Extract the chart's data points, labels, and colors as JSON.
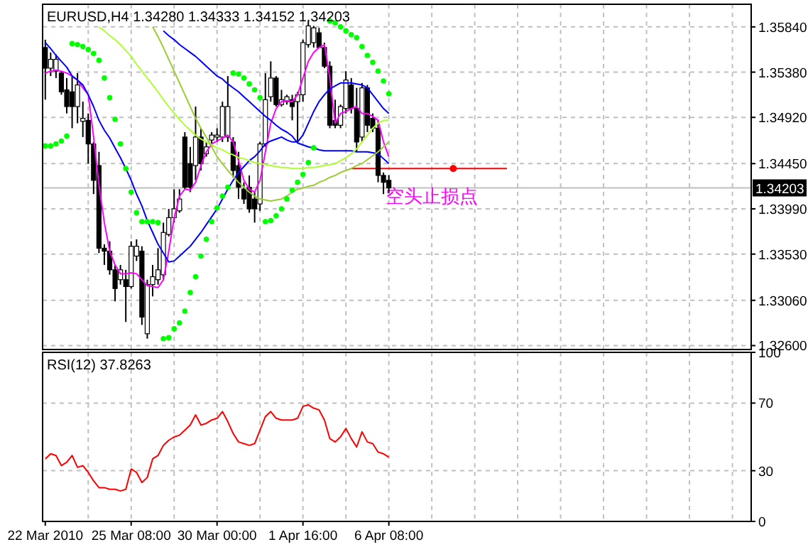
{
  "chart_data": [
    {
      "type": "candlestick",
      "title": "EURUSD,H4  1.34280 1.34333 1.34152 1.34203",
      "color": "#000000",
      "categories": [
        null,
        null,
        null,
        null,
        null,
        null,
        null,
        null,
        null,
        null,
        null,
        null,
        null,
        null,
        null,
        null,
        null,
        null,
        null,
        null,
        null,
        null,
        null,
        null,
        null,
        null,
        null,
        null,
        null,
        null,
        null,
        null,
        null,
        null,
        null,
        null,
        null,
        null,
        null,
        null,
        null,
        null,
        null,
        null,
        null,
        null,
        null,
        null,
        null,
        null,
        null,
        null,
        null,
        null,
        null,
        null,
        null,
        null,
        null,
        null,
        null,
        null,
        null,
        null,
        null,
        null,
        null,
        null,
        null,
        null,
        null,
        null,
        null,
        null,
        null,
        null,
        null,
        null,
        null,
        null,
        null,
        null,
        null,
        null,
        null,
        null,
        null,
        null,
        null,
        null,
        null,
        null,
        null,
        null,
        null,
        null,
        null,
        null,
        null,
        null,
        null,
        null,
        null,
        null,
        null,
        null,
        null,
        null,
        null,
        null,
        null,
        null,
        null,
        null,
        null,
        null,
        null,
        null,
        null,
        null,
        null,
        null,
        null,
        null,
        null,
        null,
        null,
        null,
        null,
        null,
        null,
        null
      ],
      "ohlc": [
        [
          1.3563,
          1.3571,
          1.351,
          1.3542
        ],
        [
          1.3542,
          1.3558,
          1.3534,
          1.3551
        ],
        [
          1.3539,
          1.3556,
          1.3532,
          1.3551
        ],
        [
          1.3537,
          1.3539,
          1.3515,
          1.3518
        ],
        [
          1.352,
          1.3532,
          1.3496,
          1.3503
        ],
        [
          1.3518,
          1.3534,
          1.3481,
          1.3503
        ],
        [
          1.3503,
          1.3537,
          1.3486,
          1.3525
        ],
        [
          1.3488,
          1.3508,
          1.3472,
          1.3491
        ],
        [
          1.3489,
          1.3496,
          1.3445,
          1.3465
        ],
        [
          1.3465,
          1.3467,
          1.3414,
          1.3428
        ],
        [
          1.3443,
          1.3457,
          1.3354,
          1.3359
        ],
        [
          1.3359,
          1.3363,
          1.3342,
          1.3356
        ],
        [
          1.3356,
          1.3366,
          1.3332,
          1.3337
        ],
        [
          1.3337,
          1.3342,
          1.3305,
          1.3318
        ],
        [
          1.3327,
          1.3342,
          1.3322,
          1.3337
        ],
        [
          1.3327,
          1.3337,
          1.3284,
          1.332
        ],
        [
          1.332,
          1.3366,
          1.3318,
          1.3361
        ],
        [
          1.3351,
          1.3368,
          1.3346,
          1.3361
        ],
        [
          1.3356,
          1.3361,
          1.3281,
          1.3289
        ],
        [
          1.3272,
          1.3327,
          1.3267,
          1.3322
        ],
        [
          1.3322,
          1.3342,
          1.331,
          1.333
        ],
        [
          1.3327,
          1.3359,
          1.3322,
          1.3337
        ],
        [
          1.3332,
          1.3385,
          1.3327,
          1.3375
        ],
        [
          1.3373,
          1.3399,
          1.3371,
          1.339
        ],
        [
          1.339,
          1.3419,
          1.3385,
          1.3399
        ],
        [
          1.3397,
          1.3419,
          1.3395,
          1.3409
        ],
        [
          1.3472,
          1.3477,
          1.3419,
          1.3421
        ],
        [
          1.3445,
          1.3462,
          1.3416,
          1.3421
        ],
        [
          1.3443,
          1.3503,
          1.3428,
          1.3472
        ],
        [
          1.3472,
          1.3481,
          1.3438,
          1.3445
        ],
        [
          1.3455,
          1.3467,
          1.3452,
          1.3462
        ],
        [
          1.3469,
          1.3477,
          1.3462,
          1.3474
        ],
        [
          1.3472,
          1.3481,
          1.3467,
          1.3474
        ],
        [
          1.3472,
          1.3508,
          1.3467,
          1.3503
        ],
        [
          1.3472,
          1.3534,
          1.3467,
          1.3503
        ],
        [
          1.3467,
          1.3472,
          1.3431,
          1.3438
        ],
        [
          1.3443,
          1.3457,
          1.3409,
          1.3421
        ],
        [
          1.3419,
          1.3426,
          1.3404,
          1.3409
        ],
        [
          1.3421,
          1.3433,
          1.3395,
          1.3399
        ],
        [
          1.3409,
          1.3416,
          1.3385,
          1.3399
        ],
        [
          1.3404,
          1.3467,
          1.3397,
          1.3465
        ],
        [
          1.3465,
          1.3537,
          1.3462,
          1.351
        ],
        [
          1.3513,
          1.3549,
          1.3508,
          1.3532
        ],
        [
          1.3532,
          1.3534,
          1.3503,
          1.3505
        ],
        [
          1.3505,
          1.352,
          1.3503,
          1.351
        ],
        [
          1.3508,
          1.3515,
          1.3505,
          1.3513
        ],
        [
          1.351,
          1.3515,
          1.3489,
          1.3503
        ],
        [
          1.3508,
          1.3518,
          1.3467,
          1.3515
        ],
        [
          1.3515,
          1.3571,
          1.3508,
          1.3568
        ],
        [
          1.3566,
          1.359,
          1.3563,
          1.3585
        ],
        [
          1.3568,
          1.3585,
          1.3563,
          1.3583
        ],
        [
          1.3578,
          1.3583,
          1.3563,
          1.3563
        ],
        [
          1.3563,
          1.3568,
          1.3542,
          1.3544
        ],
        [
          1.3544,
          1.3549,
          1.3481,
          1.3484
        ],
        [
          1.3489,
          1.351,
          1.3481,
          1.3484
        ],
        [
          1.3484,
          1.3505,
          1.3481,
          1.3503
        ],
        [
          1.3501,
          1.3539,
          1.3496,
          1.353
        ],
        [
          1.3525,
          1.3532,
          1.3496,
          1.3501
        ],
        [
          1.3501,
          1.3522,
          1.3457,
          1.3467
        ],
        [
          1.3472,
          1.3527,
          1.3467,
          1.3522
        ],
        [
          1.3522,
          1.3525,
          1.3477,
          1.3484
        ],
        [
          1.3491,
          1.3496,
          1.3477,
          1.3481
        ],
        [
          1.3481,
          1.3489,
          1.3426,
          1.3433
        ],
        [
          1.3433,
          1.3436,
          1.3414,
          1.3426
        ],
        [
          1.3428,
          1.34333,
          1.34152,
          1.34203
        ],
        null,
        null,
        null,
        null,
        null,
        null,
        null,
        null,
        null,
        null,
        null,
        null,
        null,
        null,
        null,
        null,
        null,
        null,
        null,
        null,
        null,
        null,
        null,
        null,
        null,
        null,
        null,
        null,
        null,
        null,
        null,
        null,
        null,
        null,
        null,
        null,
        null,
        null,
        null,
        null,
        null,
        null,
        null,
        null,
        null,
        null,
        null,
        null,
        null,
        null,
        null,
        null,
        null,
        null,
        null,
        null,
        null,
        null,
        null,
        null,
        null,
        null,
        null,
        null,
        null,
        null,
        null
      ],
      "series": [
        {
          "type": "line",
          "color": "#ff00ff",
          "values": [
            1.3537,
            1.3539,
            1.354,
            1.3539,
            1.3537,
            1.3534,
            1.353,
            1.3522,
            1.3515,
            1.3472,
            1.3423,
            1.3385,
            1.3356,
            1.3342,
            1.3333,
            1.3333,
            1.3334,
            1.3333,
            1.3327,
            1.3321,
            1.332,
            1.3319,
            1.3327,
            1.3356,
            1.339,
            1.3412,
            1.3419,
            1.3418,
            1.3426,
            1.3443,
            1.3457,
            1.3465,
            1.3468,
            1.3471,
            1.3474,
            1.3467,
            1.3448,
            1.3428,
            1.3419,
            1.3416,
            1.3428,
            1.3457,
            1.3486,
            1.3501,
            1.3508,
            1.3509,
            1.3508,
            1.3515,
            1.3532,
            1.3549,
            1.3558,
            1.3563,
            1.3566,
            1.3532,
            1.3486,
            1.3496,
            1.3498,
            1.3501,
            1.3503,
            1.3496,
            1.3496,
            1.3493,
            1.3489,
            1.3467,
            1.3452,
            null,
            null,
            null,
            null,
            null,
            null,
            null,
            null,
            null,
            null,
            null,
            null,
            null,
            null,
            null,
            null,
            null,
            null,
            null,
            null,
            null,
            null,
            null,
            null,
            null,
            null,
            null,
            null,
            null,
            null,
            null,
            null,
            null,
            null,
            null,
            null,
            null,
            null,
            null,
            null,
            null,
            null,
            null,
            null,
            null,
            null,
            null,
            null,
            null,
            null,
            null,
            null,
            null,
            null,
            null,
            null,
            null,
            null,
            null,
            null,
            null,
            null,
            null,
            null,
            null,
            null,
            null
          ]
        },
        {
          "type": "line",
          "color": "#0000ff",
          "values": [
            1.3568,
            1.3562,
            1.3555,
            1.3549,
            1.3543,
            1.3534,
            1.353,
            1.3525,
            1.3515,
            1.3503,
            1.3489,
            1.3479,
            1.3471,
            1.3461,
            1.3451,
            1.344,
            1.3428,
            1.3414,
            1.3402,
            1.3387,
            1.3375,
            1.3363,
            1.3354,
            1.3345,
            1.3346,
            1.3351,
            1.3356,
            1.3361,
            1.3368,
            1.3375,
            1.3383,
            1.3391,
            1.3399,
            1.3409,
            1.3419,
            1.3428,
            1.3436,
            1.3442,
            1.3448,
            1.3452,
            1.3458,
            1.3465,
            1.3468,
            1.347,
            1.3472,
            1.3469,
            1.3467,
            1.3467,
            1.3474,
            1.3486,
            1.3498,
            1.3508,
            1.3515,
            1.3521,
            1.3524,
            1.3527,
            1.3527,
            1.3527,
            1.3526,
            1.3525,
            1.3522,
            1.3515,
            1.3508,
            1.3501,
            1.3496,
            null,
            null,
            null,
            null,
            null,
            null,
            null,
            null,
            null,
            null,
            null,
            null,
            null,
            null,
            null,
            null,
            null,
            null,
            null,
            null,
            null,
            null,
            null,
            null,
            null,
            null,
            null,
            null,
            null,
            null,
            null,
            null,
            null,
            null,
            null,
            null,
            null,
            null,
            null,
            null,
            null,
            null,
            null,
            null,
            null,
            null,
            null,
            null,
            null,
            null,
            null,
            null,
            null,
            null,
            null,
            null,
            null,
            null,
            null,
            null,
            null,
            null,
            null,
            null,
            null,
            null,
            null
          ]
        },
        {
          "type": "line",
          "color": "#0000ff",
          "values": [
            null,
            null,
            null,
            null,
            null,
            null,
            null,
            null,
            null,
            null,
            null,
            null,
            null,
            null,
            null,
            null,
            null,
            null,
            null,
            null,
            null,
            null,
            1.358,
            1.3575,
            1.3571,
            1.3566,
            1.3562,
            1.3558,
            1.3554,
            1.3549,
            1.3544,
            1.3539,
            1.3534,
            1.3531,
            1.3526,
            1.3522,
            1.3518,
            1.3513,
            1.3508,
            1.3503,
            1.3498,
            1.3493,
            1.3489,
            1.3484,
            1.348,
            1.3477,
            1.3473,
            1.3466,
            1.3464,
            1.3462,
            1.3461,
            1.3459,
            1.3458,
            1.3458,
            1.3458,
            1.3458,
            1.3458,
            1.3458,
            1.3457,
            1.3457,
            1.3457,
            1.3456,
            1.3455,
            1.345,
            1.3445,
            null,
            null,
            null,
            null,
            null,
            null,
            null,
            null,
            null,
            null,
            null,
            null,
            null,
            null,
            null,
            null,
            null,
            null,
            null,
            null,
            null,
            null,
            null,
            null,
            null,
            null,
            null,
            null,
            null,
            null,
            null,
            null,
            null,
            null,
            null,
            null,
            null,
            null,
            null,
            null,
            null,
            null,
            null,
            null,
            null,
            null,
            null,
            null,
            null,
            null,
            null,
            null,
            null,
            null,
            null,
            null,
            null,
            null,
            null,
            null,
            null,
            null,
            null,
            null,
            null,
            null,
            null
          ]
        },
        {
          "type": "line",
          "color": "#adff2f",
          "values": [
            null,
            null,
            null,
            null,
            null,
            null,
            null,
            null,
            null,
            null,
            1.3584,
            1.358,
            1.3575,
            1.3571,
            1.3566,
            1.356,
            1.3554,
            1.3546,
            1.3539,
            1.3532,
            1.3525,
            1.3518,
            1.351,
            1.3503,
            1.3496,
            1.349,
            1.3484,
            1.3479,
            1.3474,
            1.347,
            1.3467,
            1.3464,
            1.3461,
            1.3459,
            1.3456,
            1.3454,
            1.3451,
            1.345,
            1.3448,
            1.3446,
            1.3445,
            1.3444,
            1.3443,
            1.3442,
            1.3441,
            1.3441,
            1.344,
            1.344,
            1.344,
            1.3441,
            1.3441,
            1.3442,
            1.3443,
            1.3444,
            1.3445,
            1.3448,
            1.3451,
            1.3455,
            1.346,
            1.3467,
            1.3474,
            1.3481,
            1.3486,
            1.3489,
            1.3489,
            null,
            null,
            null,
            null,
            null,
            null,
            null,
            null,
            null,
            null,
            null,
            null,
            null,
            null,
            null,
            null,
            null,
            null,
            null,
            null,
            null,
            null,
            null,
            null,
            null,
            null,
            null,
            null,
            null,
            null,
            null,
            null,
            null,
            null,
            null,
            null,
            null,
            null,
            null,
            null,
            null,
            null,
            null,
            null,
            null,
            null,
            null,
            null,
            null,
            null,
            null,
            null,
            null,
            null,
            null,
            null,
            null,
            null,
            null,
            null,
            null,
            null,
            null,
            null,
            null,
            null,
            null
          ]
        },
        {
          "type": "line",
          "color": "#9acd32",
          "values": [
            null,
            null,
            null,
            null,
            null,
            null,
            null,
            null,
            null,
            null,
            null,
            null,
            null,
            null,
            null,
            null,
            null,
            null,
            null,
            null,
            1.3584,
            1.3574,
            1.3563,
            1.3551,
            1.3539,
            1.3527,
            1.3515,
            1.3503,
            1.3491,
            1.3481,
            1.3472,
            1.3462,
            1.3452,
            1.3445,
            1.3438,
            1.3432,
            1.3426,
            1.3421,
            1.3416,
            1.3412,
            1.3409,
            1.3408,
            1.3407,
            1.3408,
            1.3409,
            1.3412,
            1.3416,
            1.3419,
            1.342,
            1.3422,
            1.3423,
            1.3426,
            1.3428,
            1.3431,
            1.3433,
            1.3436,
            1.3438,
            1.344,
            1.3443,
            1.3445,
            1.3449,
            1.3453,
            1.3457,
            1.3462,
            1.3467,
            null,
            null,
            null,
            null,
            null,
            null,
            null,
            null,
            null,
            null,
            null,
            null,
            null,
            null,
            null,
            null,
            null,
            null,
            null,
            null,
            null,
            null,
            null,
            null,
            null,
            null,
            null,
            null,
            null,
            null,
            null,
            null,
            null,
            null,
            null,
            null,
            null,
            null,
            null,
            null,
            null,
            null,
            null,
            null,
            null,
            null,
            null,
            null,
            null,
            null,
            null,
            null,
            null,
            null,
            null,
            null,
            null,
            null,
            null,
            null,
            null,
            null,
            null,
            null,
            null,
            null,
            null
          ]
        },
        {
          "type": "scatter",
          "color": "#00ff00",
          "marker": "circle",
          "values": [
            1.3463,
            1.3463,
            1.3465,
            1.3468,
            1.3473,
            1.3567,
            1.3566,
            1.3564,
            1.3561,
            1.3557,
            1.355,
            1.3532,
            1.3512,
            1.349,
            1.3465,
            1.344,
            1.3416,
            1.3395,
            1.3386,
            1.3386,
            1.3386,
            1.3385,
            1.3267,
            1.3268,
            1.3277,
            1.3283,
            1.3295,
            1.3314,
            1.333,
            1.3351,
            1.3368,
            1.3386,
            1.34,
            1.3412,
            1.3421,
            1.3537,
            1.3536,
            1.3532,
            1.3526,
            1.352,
            1.3512,
            1.3386,
            1.3387,
            1.3392,
            1.3399,
            1.3409,
            1.3418,
            1.3426,
            1.3434,
            1.3446,
            1.3461,
            null,
            null,
            1.359,
            1.3588,
            1.3584,
            1.358,
            1.3576,
            1.3573,
            1.3564,
            1.3555,
            1.3548,
            1.3539,
            1.3529,
            1.3516,
            null,
            null,
            null,
            null,
            null,
            null,
            null,
            null,
            null,
            null,
            null,
            null,
            null,
            null,
            null,
            null,
            null,
            null,
            null,
            null,
            null,
            null,
            null,
            null,
            null,
            null,
            null,
            null,
            null,
            null,
            null,
            null,
            null,
            null,
            null,
            null,
            null,
            null,
            null,
            null,
            null,
            null,
            null,
            null,
            null,
            null,
            null,
            null,
            null,
            null,
            null,
            null,
            null,
            null,
            null,
            null,
            null,
            null,
            null,
            null,
            null,
            null,
            null,
            null,
            null,
            null,
            null
          ]
        }
      ],
      "ylim": [
        1.3256,
        1.3607
      ],
      "yticks": [
        {
          "value": 1.3584,
          "label": "1.35840"
        },
        {
          "value": 1.3538,
          "label": "1.35380"
        },
        {
          "value": 1.3492,
          "label": "1.34920"
        },
        {
          "value": 1.3445,
          "label": "1.34450"
        },
        {
          "value": 1.3399,
          "label": "1.33990"
        },
        {
          "value": 1.3353,
          "label": "1.33530"
        },
        {
          "value": 1.3306,
          "label": "1.33060"
        },
        {
          "value": 1.326,
          "label": "1.32600"
        }
      ],
      "ref_lines": [
        {
          "axis": "y",
          "value": 1.34203,
          "label": "1.34203",
          "color": "#c0c0c0"
        },
        {
          "axis": "y",
          "value": 1.344,
          "color": "#ff0000"
        }
      ],
      "annotations": [
        {
          "text": "空头止损点",
          "y": 1.344
        }
      ],
      "grid": true,
      "tick_labels": "y"
    },
    {
      "type": "line",
      "title": "RSI(12) 37.8263",
      "categories": [
        "22 Mar 2010",
        null,
        null,
        null,
        null,
        null,
        null,
        null,
        null,
        null,
        null,
        null,
        null,
        null,
        null,
        null,
        "25 Mar 08:00",
        null,
        null,
        null,
        null,
        null,
        null,
        null,
        null,
        null,
        null,
        null,
        null,
        null,
        null,
        null,
        "30 Mar 00:00",
        null,
        null,
        null,
        null,
        null,
        null,
        null,
        null,
        null,
        null,
        null,
        null,
        null,
        null,
        null,
        "1 Apr 16:00",
        null,
        null,
        null,
        null,
        null,
        null,
        null,
        null,
        null,
        null,
        null,
        null,
        null,
        null,
        null,
        "6 Apr 08:00",
        null,
        null,
        null,
        null,
        null,
        null,
        null,
        null,
        null,
        null,
        null,
        null,
        null,
        null,
        null,
        null,
        null,
        null,
        null,
        null,
        null,
        null,
        null,
        null,
        null,
        null,
        null,
        null,
        null,
        null,
        null,
        null,
        null,
        null,
        null,
        null,
        null,
        null,
        null,
        null,
        null,
        null,
        null,
        null,
        null,
        null,
        null,
        null,
        null,
        null,
        null,
        null,
        null,
        null,
        null,
        null,
        null,
        null,
        null,
        null,
        null,
        null,
        null,
        null,
        null,
        null,
        null
      ],
      "series": [
        {
          "color": "#ff0000",
          "values": [
            37,
            40,
            39,
            33,
            35,
            39,
            32,
            33,
            29,
            24,
            20,
            20,
            19,
            19,
            18,
            19,
            31,
            29,
            23,
            26,
            37,
            39,
            45,
            48,
            50,
            51,
            54,
            57,
            63,
            57,
            58,
            60,
            61,
            65,
            59,
            52,
            47,
            46,
            45,
            46,
            54,
            62,
            65,
            61,
            60,
            60,
            60,
            61,
            68,
            69,
            67,
            66,
            60,
            49,
            47,
            50,
            55,
            49,
            44,
            53,
            47,
            46,
            41,
            40,
            38,
            null,
            null,
            null,
            null,
            null,
            null,
            null,
            null,
            null,
            null,
            null,
            null,
            null,
            null,
            null,
            null,
            null,
            null,
            null,
            null,
            null,
            null,
            null,
            null,
            null,
            null,
            null,
            null,
            null,
            null,
            null,
            null,
            null,
            null,
            null,
            null,
            null,
            null,
            null,
            null,
            null,
            null,
            null,
            null,
            null,
            null,
            null,
            null,
            null,
            null,
            null,
            null,
            null,
            null,
            null,
            null,
            null,
            null,
            null,
            null,
            null,
            null,
            null,
            null,
            null,
            null,
            null
          ]
        }
      ],
      "ylim": [
        0,
        100
      ],
      "yticks": [
        0,
        30,
        70,
        100
      ],
      "ref_lines": [
        {
          "axis": "y",
          "value": 30,
          "color": "#c0c0c0",
          "line_style": "dashed"
        },
        {
          "axis": "y",
          "value": 70,
          "color": "#c0c0c0",
          "line_style": "dashed"
        }
      ],
      "grid": "x"
    }
  ]
}
